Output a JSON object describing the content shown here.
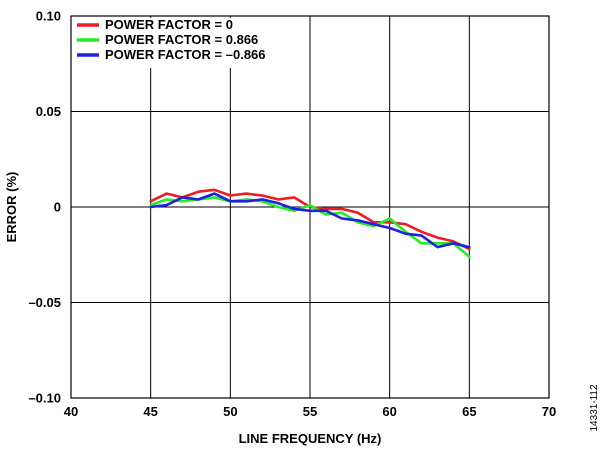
{
  "chart_data": {
    "type": "line",
    "title": "",
    "xlabel": "LINE FREQUENCY (Hz)",
    "ylabel": "ERROR (%)",
    "xlim": [
      40,
      70
    ],
    "ylim": [
      -0.1,
      0.1
    ],
    "x_ticks": [
      40,
      45,
      50,
      55,
      60,
      65,
      70
    ],
    "x_tick_labels": [
      "40",
      "45",
      "50",
      "55",
      "60",
      "65",
      "70"
    ],
    "y_ticks": [
      0.1,
      0.05,
      0,
      -0.05,
      -0.1
    ],
    "y_tick_labels": [
      "0.10",
      "0.05",
      "0",
      "–0.05",
      "–0.10"
    ],
    "grid": true,
    "legend_position": "top-left",
    "x": [
      45,
      46,
      47,
      48,
      49,
      50,
      51,
      52,
      53,
      54,
      55,
      56,
      57,
      58,
      59,
      60,
      61,
      62,
      63,
      64,
      65
    ],
    "series": [
      {
        "name": "POWER FACTOR = 0",
        "color": "#ee1c25",
        "values": [
          0.003,
          0.007,
          0.005,
          0.008,
          0.009,
          0.006,
          0.007,
          0.006,
          0.004,
          0.005,
          0.0,
          -0.001,
          -0.001,
          -0.003,
          -0.008,
          -0.008,
          -0.009,
          -0.013,
          -0.016,
          -0.018,
          -0.022
        ]
      },
      {
        "name": "POWER FACTOR = 0.866",
        "color": "#22ee22",
        "values": [
          0.001,
          0.004,
          0.003,
          0.004,
          0.005,
          0.003,
          0.004,
          0.003,
          0.0,
          -0.002,
          0.001,
          -0.004,
          -0.003,
          -0.008,
          -0.01,
          -0.006,
          -0.013,
          -0.019,
          -0.019,
          -0.019,
          -0.026
        ]
      },
      {
        "name": "POWER FACTOR = –0.866",
        "color": "#1e22dd",
        "values": [
          0.0,
          0.001,
          0.005,
          0.004,
          0.007,
          0.003,
          0.003,
          0.004,
          0.002,
          -0.001,
          -0.002,
          -0.002,
          -0.006,
          -0.007,
          -0.009,
          -0.011,
          -0.014,
          -0.015,
          -0.021,
          -0.019,
          -0.021
        ]
      }
    ],
    "figure_id": "14331-112"
  }
}
